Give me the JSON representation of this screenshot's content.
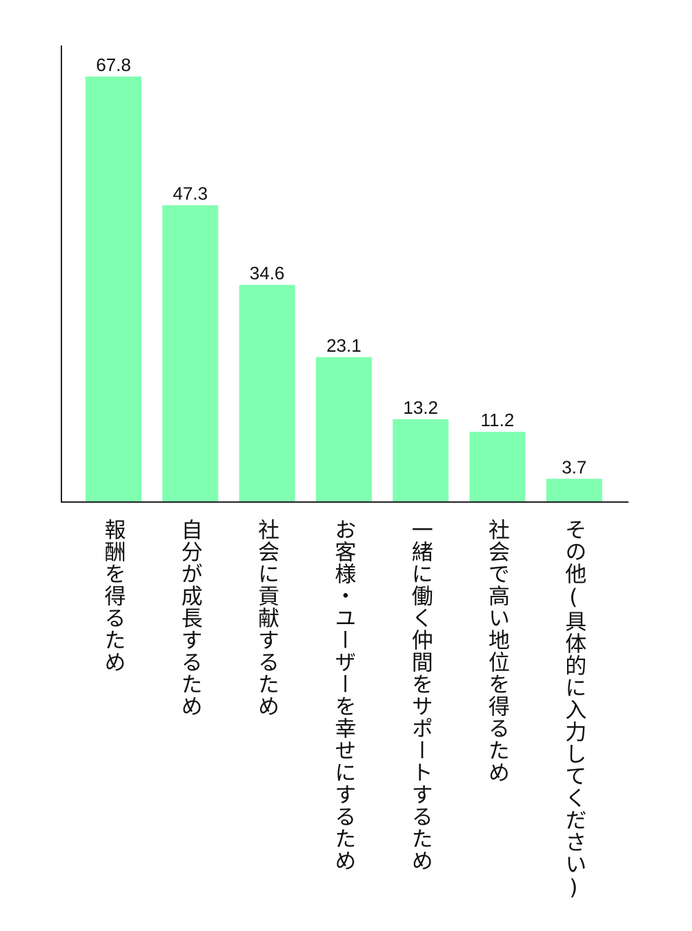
{
  "chart_data": {
    "type": "bar",
    "categories": [
      "報酬を得るため",
      "自分が成長するため",
      "社会に貢献するため",
      "お客様・ユーザーを幸せにするため",
      "一緒に働く仲間をサポートするため",
      "社会で高い地位を得るため",
      "その他(具体的に入力してください)"
    ],
    "values": [
      67.8,
      47.3,
      34.6,
      23.1,
      13.2,
      11.2,
      3.7
    ],
    "value_labels": [
      "67.8",
      "47.3",
      "34.6",
      "23.1",
      "13.2",
      "11.2",
      "3.7"
    ],
    "title": "",
    "xlabel": "",
    "ylabel": "",
    "ylim": [
      0,
      70
    ],
    "grid": false,
    "legend": "none",
    "bar_color": "#80FFB0",
    "axis_color": "#222222"
  }
}
